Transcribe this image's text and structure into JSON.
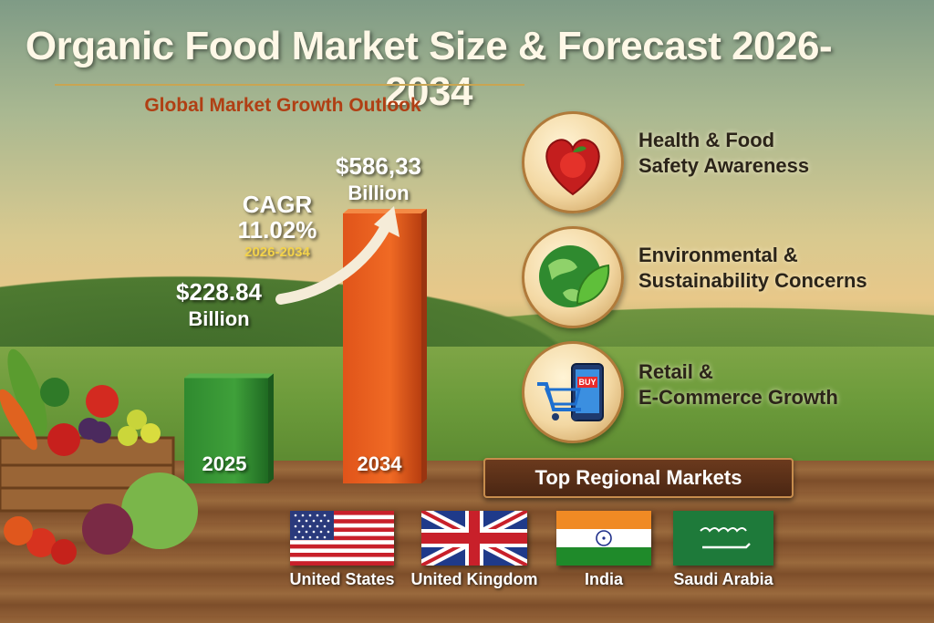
{
  "title": "Organic Food Market Size & Forecast 2026-2034",
  "subtitle": "Global Market Growth Outlook",
  "chart_data": {
    "type": "bar",
    "categories": [
      "2025",
      "2034"
    ],
    "values": [
      228.84,
      586.33
    ],
    "value_labels": [
      "$228.84",
      "$586,33"
    ],
    "unit_label": "Billion",
    "colors": [
      "#2e8a2e",
      "#e8581c"
    ]
  },
  "cagr": {
    "label": "CAGR",
    "value": "11.02%",
    "period": "2026-2034"
  },
  "drivers": [
    {
      "icon": "apple-heart-icon",
      "line1": "Health & Food",
      "line2": "Safety Awareness"
    },
    {
      "icon": "globe-leaf-icon",
      "line1": "Environmental &",
      "line2": "Sustainability Concerns"
    },
    {
      "icon": "shopping-cart-phone-icon",
      "line1": "Retail &",
      "line2": "E-Commerce Growth",
      "badge": "BUY"
    }
  ],
  "regions": {
    "heading": "Top Regional Markets",
    "items": [
      {
        "name": "United States",
        "flag": "us-flag-icon"
      },
      {
        "name": "United Kingdom",
        "flag": "uk-flag-icon"
      },
      {
        "name": "India",
        "flag": "india-flag-icon"
      },
      {
        "name": "Saudi Arabia",
        "flag": "saudi-flag-icon"
      }
    ]
  }
}
